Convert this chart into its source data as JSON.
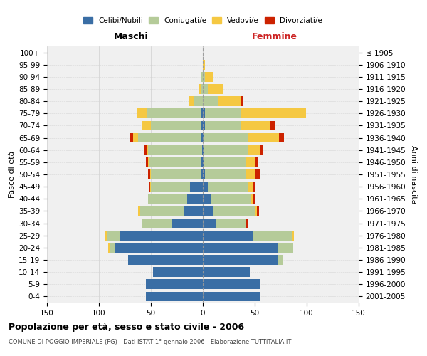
{
  "age_groups": [
    "100+",
    "95-99",
    "90-94",
    "85-89",
    "80-84",
    "75-79",
    "70-74",
    "65-69",
    "60-64",
    "55-59",
    "50-54",
    "45-49",
    "40-44",
    "35-39",
    "30-34",
    "25-29",
    "20-24",
    "15-19",
    "10-14",
    "5-9",
    "0-4"
  ],
  "birth_years": [
    "≤ 1905",
    "1906-1910",
    "1911-1915",
    "1916-1920",
    "1921-1925",
    "1926-1930",
    "1931-1935",
    "1936-1940",
    "1941-1945",
    "1946-1950",
    "1951-1955",
    "1956-1960",
    "1961-1965",
    "1966-1970",
    "1971-1975",
    "1976-1980",
    "1981-1985",
    "1986-1990",
    "1991-1995",
    "1996-2000",
    "2001-2005"
  ],
  "male": {
    "celibi": [
      0,
      0,
      0,
      0,
      0,
      2,
      2,
      2,
      1,
      2,
      2,
      12,
      15,
      18,
      30,
      80,
      85,
      72,
      48,
      55,
      55
    ],
    "coniugati": [
      0,
      0,
      2,
      2,
      8,
      52,
      48,
      60,
      52,
      50,
      48,
      38,
      38,
      42,
      28,
      12,
      5,
      0,
      0,
      0,
      0
    ],
    "vedovi": [
      0,
      0,
      0,
      2,
      5,
      10,
      8,
      5,
      1,
      1,
      1,
      1,
      0,
      2,
      0,
      2,
      1,
      0,
      0,
      0,
      0
    ],
    "divorziati": [
      0,
      0,
      0,
      0,
      0,
      0,
      0,
      3,
      2,
      2,
      2,
      1,
      0,
      0,
      0,
      0,
      0,
      0,
      0,
      0,
      0
    ]
  },
  "female": {
    "nubili": [
      0,
      0,
      0,
      0,
      0,
      2,
      2,
      1,
      1,
      1,
      2,
      5,
      8,
      10,
      12,
      48,
      72,
      72,
      45,
      55,
      55
    ],
    "coniugate": [
      0,
      0,
      2,
      5,
      15,
      35,
      35,
      42,
      42,
      40,
      40,
      38,
      38,
      40,
      30,
      38,
      15,
      5,
      0,
      0,
      0
    ],
    "vedove": [
      0,
      2,
      8,
      15,
      22,
      62,
      28,
      30,
      12,
      10,
      8,
      5,
      2,
      2,
      0,
      2,
      0,
      0,
      0,
      0,
      0
    ],
    "divorziate": [
      0,
      0,
      0,
      0,
      2,
      0,
      5,
      5,
      3,
      2,
      5,
      3,
      2,
      2,
      2,
      0,
      0,
      0,
      0,
      0,
      0
    ]
  },
  "colors": {
    "celibi": "#3a6ea5",
    "coniugati": "#b5cb99",
    "vedovi": "#f5c842",
    "divorziati": "#cc2200"
  },
  "xlim": 150,
  "title": "Popolazione per età, sesso e stato civile - 2006",
  "subtitle": "COMUNE DI POGGIO IMPERIALE (FG) - Dati ISTAT 1° gennaio 2006 - Elaborazione TUTTITALIA.IT",
  "xlabel_left": "Maschi",
  "xlabel_right": "Femmine",
  "ylabel_left": "Fasce di età",
  "ylabel_right": "Anni di nascita",
  "bg_color": "#ffffff",
  "plot_bg_color": "#f0f0f0",
  "grid_color": "#cccccc"
}
